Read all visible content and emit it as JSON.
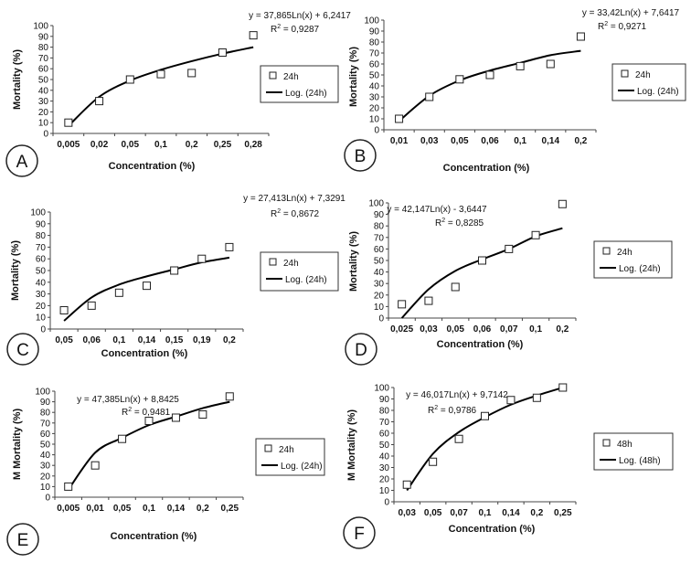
{
  "chart_data": [
    {
      "type": "scatter",
      "panel_label": "A",
      "categories": [
        "0,005",
        "0,02",
        "0,05",
        "0,1",
        "0,2",
        "0,25",
        "0,28"
      ],
      "series": [
        {
          "name": "24h",
          "values": [
            10,
            30,
            50,
            55,
            56,
            75,
            91
          ]
        }
      ],
      "trendline": {
        "name": "Log. (24h)",
        "equation": "y = 37,865Ln(x) + 6,2417",
        "r2_prefix": "R",
        "r2_sup": "2",
        "r2_value": " = 0,9287",
        "values": [
          7,
          34,
          49,
          59,
          67,
          74,
          80
        ]
      },
      "xlabel": "Concentration (%)",
      "ylabel": "Mortality (%)",
      "yticks": [
        "0",
        "10",
        "20",
        "30",
        "40",
        "50",
        "60",
        "70",
        "80",
        "90",
        "100"
      ],
      "ylim": [
        0,
        100
      ]
    },
    {
      "type": "scatter",
      "panel_label": "B",
      "categories": [
        "0,01",
        "0,03",
        "0,05",
        "0,06",
        "0,1",
        "0,14",
        "0,2"
      ],
      "series": [
        {
          "name": "24h",
          "values": [
            10,
            30,
            46,
            50,
            58,
            60,
            85
          ]
        }
      ],
      "trendline": {
        "name": "Log. (24h)",
        "equation": "y = 33,42Ln(x) + 7,6417",
        "r2_prefix": "R",
        "r2_sup": "2",
        "r2_value": " = 0,9271",
        "values": [
          8,
          31,
          45,
          54,
          61,
          68,
          72
        ]
      },
      "xlabel": "Concentration (%)",
      "ylabel": "Mortality (%)",
      "yticks": [
        "0",
        "10",
        "20",
        "30",
        "40",
        "50",
        "60",
        "70",
        "80",
        "90",
        "100"
      ],
      "ylim": [
        0,
        100
      ]
    },
    {
      "type": "scatter",
      "panel_label": "C",
      "categories": [
        "0,05",
        "0,06",
        "0,1",
        "0,14",
        "0,15",
        "0,19",
        "0,2"
      ],
      "series": [
        {
          "name": "24h",
          "values": [
            16,
            20,
            31,
            37,
            50,
            60,
            70
          ]
        }
      ],
      "trendline": {
        "name": "Log. (24h)",
        "equation": "y = 27,413Ln(x) + 7,3291",
        "r2_prefix": "R",
        "r2_sup": "2",
        "r2_value": " = 0,8672",
        "values": [
          7,
          27,
          38,
          45,
          51,
          57,
          61
        ]
      },
      "xlabel": "Concentration (%)",
      "ylabel": "Mortality (%)",
      "yticks": [
        "0",
        "10",
        "20",
        "30",
        "40",
        "50",
        "60",
        "70",
        "80",
        "90",
        "100"
      ],
      "ylim": [
        0,
        100
      ]
    },
    {
      "type": "scatter",
      "panel_label": "D",
      "categories": [
        "0,025",
        "0,03",
        "0,05",
        "0,06",
        "0,07",
        "0,1",
        "0,2"
      ],
      "series": [
        {
          "name": "24h",
          "values": [
            12,
            15,
            27,
            50,
            60,
            72,
            99
          ]
        }
      ],
      "trendline": {
        "name": "Log. (24h)",
        "equation": "y = 42,147Ln(x) - 3,6447",
        "r2_prefix": "R",
        "r2_sup": "2",
        "r2_value": " = 0,8285",
        "values": [
          0,
          25,
          41,
          51,
          60,
          71,
          78
        ]
      },
      "xlabel": "Concentration (%)",
      "ylabel": "Mortality (%)",
      "yticks": [
        "0",
        "10",
        "20",
        "30",
        "40",
        "50",
        "60",
        "70",
        "80",
        "90",
        "100"
      ],
      "ylim": [
        0,
        100
      ]
    },
    {
      "type": "scatter",
      "panel_label": "E",
      "categories": [
        "0,005",
        "0,01",
        "0,05",
        "0,1",
        "0,14",
        "0,2",
        "0,25"
      ],
      "series": [
        {
          "name": "24h",
          "values": [
            10,
            30,
            55,
            72,
            75,
            78,
            95
          ]
        }
      ],
      "trendline": {
        "name": "Log. (24h)",
        "equation": "y = 47,385Ln(x) + 8,8425",
        "r2_prefix": "R",
        "r2_sup": "2",
        "r2_value": " = 0,9481",
        "values": [
          7,
          42,
          56,
          68,
          76,
          84,
          90
        ]
      },
      "xlabel": "Concentration (%)",
      "ylabel": "M Mortality (%)",
      "yticks": [
        "0",
        "10",
        "20",
        "30",
        "40",
        "50",
        "60",
        "70",
        "80",
        "90",
        "100"
      ],
      "ylim": [
        0,
        100
      ]
    },
    {
      "type": "scatter",
      "panel_label": "F",
      "categories": [
        "0,03",
        "0,05",
        "0,07",
        "0,1",
        "0,14",
        "0,2",
        "0,25"
      ],
      "series": [
        {
          "name": "48h",
          "values": [
            15,
            35,
            55,
            75,
            89,
            91,
            100
          ]
        }
      ],
      "trendline": {
        "name": "Log. (48h)",
        "equation": "y = 46,017Ln(x) + 9,7142",
        "r2_prefix": "R",
        "r2_sup": "2",
        "r2_value": " = 0,9786",
        "values": [
          10,
          42,
          61,
          74,
          85,
          93,
          100
        ]
      },
      "xlabel": "Concentration (%)",
      "ylabel": "M Mortality (%)",
      "yticks": [
        "0",
        "10",
        "20",
        "30",
        "40",
        "50",
        "60",
        "70",
        "80",
        "90",
        "100"
      ],
      "ylim": [
        0,
        100
      ]
    }
  ]
}
